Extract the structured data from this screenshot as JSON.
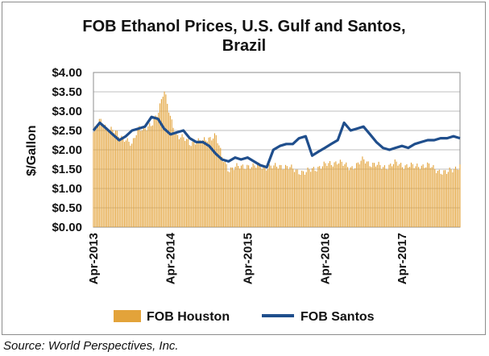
{
  "chart_data": {
    "type": "bar",
    "title_lines": [
      "FOB Ethanol Prices, U.S. Gulf and Santos,",
      "Brazil"
    ],
    "ylabel": "$/Gallon",
    "xlabel": "",
    "ylim": [
      0,
      4
    ],
    "xlim": [
      "2013-04-01",
      "2018-01-01"
    ],
    "y_ticks": [
      0,
      0.5,
      1.0,
      1.5,
      2.0,
      2.5,
      3.0,
      3.5,
      4.0
    ],
    "y_tick_labels": [
      "$0.00",
      "$0.50",
      "$1.00",
      "$1.50",
      "$2.00",
      "$2.50",
      "$3.00",
      "$3.50",
      "$4.00"
    ],
    "x_ticks": [
      "2013-04-01",
      "2014-04-01",
      "2015-04-01",
      "2016-04-01",
      "2017-04-01"
    ],
    "x_tick_labels": [
      "Apr-2013",
      "Apr-2014",
      "Apr-2015",
      "Apr-2016",
      "Apr-2017"
    ],
    "grid": true,
    "legend_position": "bottom",
    "colors": {
      "houston": "#E3A33A",
      "santos": "#1F4E8C",
      "grid": "#bfbfbf",
      "plot_border": "#8c8c8c"
    },
    "series": [
      {
        "name": "FOB Houston",
        "type": "bar",
        "points": [
          [
            "2013-04-01",
            2.45
          ],
          [
            "2013-05-01",
            2.75
          ],
          [
            "2013-06-01",
            2.6
          ],
          [
            "2013-07-01",
            2.5
          ],
          [
            "2013-08-01",
            2.35
          ],
          [
            "2013-09-01",
            2.3
          ],
          [
            "2013-10-01",
            2.1
          ],
          [
            "2013-11-01",
            2.6
          ],
          [
            "2013-12-01",
            2.55
          ],
          [
            "2014-01-01",
            2.6
          ],
          [
            "2014-02-01",
            3.0
          ],
          [
            "2014-03-01",
            3.55
          ],
          [
            "2014-04-01",
            2.8
          ],
          [
            "2014-05-01",
            2.4
          ],
          [
            "2014-06-01",
            2.3
          ],
          [
            "2014-07-01",
            2.15
          ],
          [
            "2014-08-01",
            2.25
          ],
          [
            "2014-09-01",
            2.2
          ],
          [
            "2014-10-01",
            2.3
          ],
          [
            "2014-11-01",
            2.4
          ],
          [
            "2014-12-01",
            1.8
          ],
          [
            "2015-01-01",
            1.5
          ],
          [
            "2015-02-01",
            1.55
          ],
          [
            "2015-03-01",
            1.55
          ],
          [
            "2015-04-01",
            1.6
          ],
          [
            "2015-05-01",
            1.55
          ],
          [
            "2015-06-01",
            1.6
          ],
          [
            "2015-07-01",
            1.55
          ],
          [
            "2015-08-01",
            1.55
          ],
          [
            "2015-09-01",
            1.6
          ],
          [
            "2015-10-01",
            1.55
          ],
          [
            "2015-11-01",
            1.5
          ],
          [
            "2015-12-01",
            1.45
          ],
          [
            "2016-01-01",
            1.4
          ],
          [
            "2016-02-01",
            1.5
          ],
          [
            "2016-03-01",
            1.55
          ],
          [
            "2016-04-01",
            1.6
          ],
          [
            "2016-05-01",
            1.65
          ],
          [
            "2016-06-01",
            1.7
          ],
          [
            "2016-07-01",
            1.6
          ],
          [
            "2016-08-01",
            1.55
          ],
          [
            "2016-09-01",
            1.6
          ],
          [
            "2016-10-01",
            1.75
          ],
          [
            "2016-11-01",
            1.65
          ],
          [
            "2016-12-01",
            1.6
          ],
          [
            "2017-01-01",
            1.55
          ],
          [
            "2017-02-01",
            1.6
          ],
          [
            "2017-03-01",
            1.65
          ],
          [
            "2017-04-01",
            1.6
          ],
          [
            "2017-05-01",
            1.6
          ],
          [
            "2017-06-01",
            1.55
          ],
          [
            "2017-07-01",
            1.6
          ],
          [
            "2017-08-01",
            1.6
          ],
          [
            "2017-09-01",
            1.5
          ],
          [
            "2017-10-01",
            1.45
          ],
          [
            "2017-11-01",
            1.4
          ],
          [
            "2017-12-01",
            1.5
          ],
          [
            "2018-01-01",
            1.6
          ]
        ]
      },
      {
        "name": "FOB Santos",
        "type": "line",
        "points": [
          [
            "2013-04-01",
            2.5
          ],
          [
            "2013-05-01",
            2.7
          ],
          [
            "2013-06-01",
            2.55
          ],
          [
            "2013-07-01",
            2.4
          ],
          [
            "2013-08-01",
            2.25
          ],
          [
            "2013-09-01",
            2.35
          ],
          [
            "2013-10-01",
            2.5
          ],
          [
            "2013-11-01",
            2.55
          ],
          [
            "2013-12-01",
            2.6
          ],
          [
            "2014-01-01",
            2.85
          ],
          [
            "2014-02-01",
            2.8
          ],
          [
            "2014-03-01",
            2.55
          ],
          [
            "2014-04-01",
            2.4
          ],
          [
            "2014-05-01",
            2.45
          ],
          [
            "2014-06-01",
            2.5
          ],
          [
            "2014-07-01",
            2.3
          ],
          [
            "2014-08-01",
            2.2
          ],
          [
            "2014-09-01",
            2.2
          ],
          [
            "2014-10-01",
            2.1
          ],
          [
            "2014-11-01",
            1.9
          ],
          [
            "2014-12-01",
            1.75
          ],
          [
            "2015-01-01",
            1.7
          ],
          [
            "2015-02-01",
            1.8
          ],
          [
            "2015-03-01",
            1.75
          ],
          [
            "2015-04-01",
            1.8
          ],
          [
            "2015-05-01",
            1.7
          ],
          [
            "2015-06-01",
            1.6
          ],
          [
            "2015-07-01",
            1.55
          ],
          [
            "2015-08-01",
            2.0
          ],
          [
            "2015-09-01",
            2.1
          ],
          [
            "2015-10-01",
            2.15
          ],
          [
            "2015-11-01",
            2.15
          ],
          [
            "2015-12-01",
            2.3
          ],
          [
            "2016-01-01",
            2.35
          ],
          [
            "2016-02-01",
            1.85
          ],
          [
            "2016-03-01",
            1.95
          ],
          [
            "2016-04-01",
            2.05
          ],
          [
            "2016-05-01",
            2.15
          ],
          [
            "2016-06-01",
            2.25
          ],
          [
            "2016-07-01",
            2.7
          ],
          [
            "2016-08-01",
            2.5
          ],
          [
            "2016-09-01",
            2.55
          ],
          [
            "2016-10-01",
            2.6
          ],
          [
            "2016-11-01",
            2.4
          ],
          [
            "2016-12-01",
            2.2
          ],
          [
            "2017-01-01",
            2.05
          ],
          [
            "2017-02-01",
            2.0
          ],
          [
            "2017-03-01",
            2.05
          ],
          [
            "2017-04-01",
            2.1
          ],
          [
            "2017-05-01",
            2.05
          ],
          [
            "2017-06-01",
            2.15
          ],
          [
            "2017-07-01",
            2.2
          ],
          [
            "2017-08-01",
            2.25
          ],
          [
            "2017-09-01",
            2.25
          ],
          [
            "2017-10-01",
            2.3
          ],
          [
            "2017-11-01",
            2.3
          ],
          [
            "2017-12-01",
            2.35
          ],
          [
            "2018-01-01",
            2.3
          ]
        ]
      }
    ]
  },
  "source": "Source: World Perspectives, Inc."
}
